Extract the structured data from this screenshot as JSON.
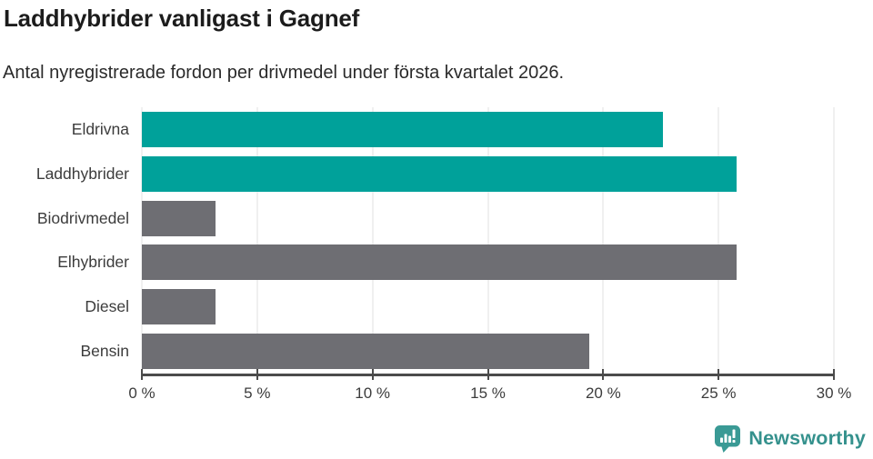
{
  "header": {
    "title": "Laddhybrider vanligast i Gagnef",
    "subtitle": "Antal nyregistrerade fordon per drivmedel under första kvartalet 2026."
  },
  "chart_data": {
    "type": "bar",
    "orientation": "horizontal",
    "title": "Laddhybrider vanligast i Gagnef",
    "subtitle": "Antal nyregistrerade fordon per drivmedel under första kvartalet 2026.",
    "categories": [
      "Eldrivna",
      "Laddhybrider",
      "Biodrivmedel",
      "Elhybrider",
      "Diesel",
      "Bensin"
    ],
    "values": [
      22.6,
      25.8,
      3.2,
      25.8,
      3.2,
      19.4
    ],
    "unit": "%",
    "bar_colors": [
      "#00a19a",
      "#00a19a",
      "#6e6e73",
      "#6e6e73",
      "#6e6e73",
      "#6e6e73"
    ],
    "highlight_color": "#00a19a",
    "default_color": "#6e6e73",
    "xlim": [
      0,
      30
    ],
    "x_ticks": [
      0,
      5,
      10,
      15,
      20,
      25,
      30
    ],
    "x_tick_labels": [
      "0 %",
      "5 %",
      "10 %",
      "15 %",
      "20 %",
      "25 %",
      "30 %"
    ],
    "grid": true,
    "gridline_color": "#e0e0e0",
    "axis_color": "#4b4b4b",
    "legend": "none"
  },
  "footer": {
    "brand": "Newsworthy",
    "brand_color": "#35918d",
    "icon_color": "#3a9a95",
    "logo_icon": "newsworthy-bar-chart-speech-bubble-icon"
  }
}
